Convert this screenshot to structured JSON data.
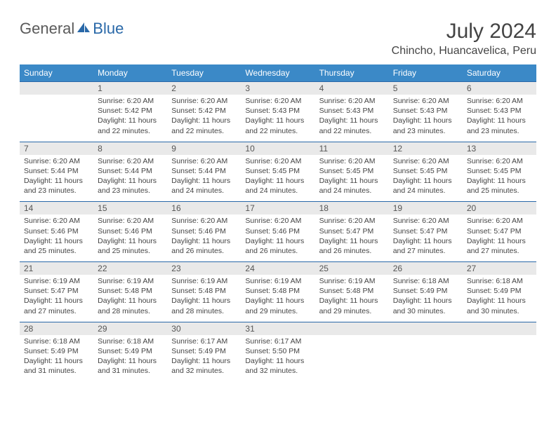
{
  "logo": {
    "left": "General",
    "right": "Blue"
  },
  "title": "July 2024",
  "location": "Chincho, Huancavelica, Peru",
  "style": {
    "header_bg": "#3b89c7",
    "header_fg": "#ffffff",
    "border_color": "#2968a8",
    "daynum_bg": "#e9e9e9",
    "text_color": "#444444",
    "title_fontsize": 30,
    "location_fontsize": 16,
    "weekday_fontsize": 12,
    "body_fontsize": 10.5
  },
  "weekdays": [
    "Sunday",
    "Monday",
    "Tuesday",
    "Wednesday",
    "Thursday",
    "Friday",
    "Saturday"
  ],
  "weeks": [
    [
      null,
      {
        "n": "1",
        "sunrise": "6:20 AM",
        "sunset": "5:42 PM",
        "day_h": "11",
        "day_m": "22"
      },
      {
        "n": "2",
        "sunrise": "6:20 AM",
        "sunset": "5:42 PM",
        "day_h": "11",
        "day_m": "22"
      },
      {
        "n": "3",
        "sunrise": "6:20 AM",
        "sunset": "5:43 PM",
        "day_h": "11",
        "day_m": "22"
      },
      {
        "n": "4",
        "sunrise": "6:20 AM",
        "sunset": "5:43 PM",
        "day_h": "11",
        "day_m": "22"
      },
      {
        "n": "5",
        "sunrise": "6:20 AM",
        "sunset": "5:43 PM",
        "day_h": "11",
        "day_m": "23"
      },
      {
        "n": "6",
        "sunrise": "6:20 AM",
        "sunset": "5:43 PM",
        "day_h": "11",
        "day_m": "23"
      }
    ],
    [
      {
        "n": "7",
        "sunrise": "6:20 AM",
        "sunset": "5:44 PM",
        "day_h": "11",
        "day_m": "23"
      },
      {
        "n": "8",
        "sunrise": "6:20 AM",
        "sunset": "5:44 PM",
        "day_h": "11",
        "day_m": "23"
      },
      {
        "n": "9",
        "sunrise": "6:20 AM",
        "sunset": "5:44 PM",
        "day_h": "11",
        "day_m": "24"
      },
      {
        "n": "10",
        "sunrise": "6:20 AM",
        "sunset": "5:45 PM",
        "day_h": "11",
        "day_m": "24"
      },
      {
        "n": "11",
        "sunrise": "6:20 AM",
        "sunset": "5:45 PM",
        "day_h": "11",
        "day_m": "24"
      },
      {
        "n": "12",
        "sunrise": "6:20 AM",
        "sunset": "5:45 PM",
        "day_h": "11",
        "day_m": "24"
      },
      {
        "n": "13",
        "sunrise": "6:20 AM",
        "sunset": "5:45 PM",
        "day_h": "11",
        "day_m": "25"
      }
    ],
    [
      {
        "n": "14",
        "sunrise": "6:20 AM",
        "sunset": "5:46 PM",
        "day_h": "11",
        "day_m": "25"
      },
      {
        "n": "15",
        "sunrise": "6:20 AM",
        "sunset": "5:46 PM",
        "day_h": "11",
        "day_m": "25"
      },
      {
        "n": "16",
        "sunrise": "6:20 AM",
        "sunset": "5:46 PM",
        "day_h": "11",
        "day_m": "26"
      },
      {
        "n": "17",
        "sunrise": "6:20 AM",
        "sunset": "5:46 PM",
        "day_h": "11",
        "day_m": "26"
      },
      {
        "n": "18",
        "sunrise": "6:20 AM",
        "sunset": "5:47 PM",
        "day_h": "11",
        "day_m": "26"
      },
      {
        "n": "19",
        "sunrise": "6:20 AM",
        "sunset": "5:47 PM",
        "day_h": "11",
        "day_m": "27"
      },
      {
        "n": "20",
        "sunrise": "6:20 AM",
        "sunset": "5:47 PM",
        "day_h": "11",
        "day_m": "27"
      }
    ],
    [
      {
        "n": "21",
        "sunrise": "6:19 AM",
        "sunset": "5:47 PM",
        "day_h": "11",
        "day_m": "27"
      },
      {
        "n": "22",
        "sunrise": "6:19 AM",
        "sunset": "5:48 PM",
        "day_h": "11",
        "day_m": "28"
      },
      {
        "n": "23",
        "sunrise": "6:19 AM",
        "sunset": "5:48 PM",
        "day_h": "11",
        "day_m": "28"
      },
      {
        "n": "24",
        "sunrise": "6:19 AM",
        "sunset": "5:48 PM",
        "day_h": "11",
        "day_m": "29"
      },
      {
        "n": "25",
        "sunrise": "6:19 AM",
        "sunset": "5:48 PM",
        "day_h": "11",
        "day_m": "29"
      },
      {
        "n": "26",
        "sunrise": "6:18 AM",
        "sunset": "5:49 PM",
        "day_h": "11",
        "day_m": "30"
      },
      {
        "n": "27",
        "sunrise": "6:18 AM",
        "sunset": "5:49 PM",
        "day_h": "11",
        "day_m": "30"
      }
    ],
    [
      {
        "n": "28",
        "sunrise": "6:18 AM",
        "sunset": "5:49 PM",
        "day_h": "11",
        "day_m": "31"
      },
      {
        "n": "29",
        "sunrise": "6:18 AM",
        "sunset": "5:49 PM",
        "day_h": "11",
        "day_m": "31"
      },
      {
        "n": "30",
        "sunrise": "6:17 AM",
        "sunset": "5:49 PM",
        "day_h": "11",
        "day_m": "32"
      },
      {
        "n": "31",
        "sunrise": "6:17 AM",
        "sunset": "5:50 PM",
        "day_h": "11",
        "day_m": "32"
      },
      null,
      null,
      null
    ]
  ],
  "labels": {
    "sunrise": "Sunrise:",
    "sunset": "Sunset:",
    "daylight_prefix": "Daylight:",
    "hours_word": "hours",
    "and_word": "and",
    "minutes_word": "minutes."
  }
}
